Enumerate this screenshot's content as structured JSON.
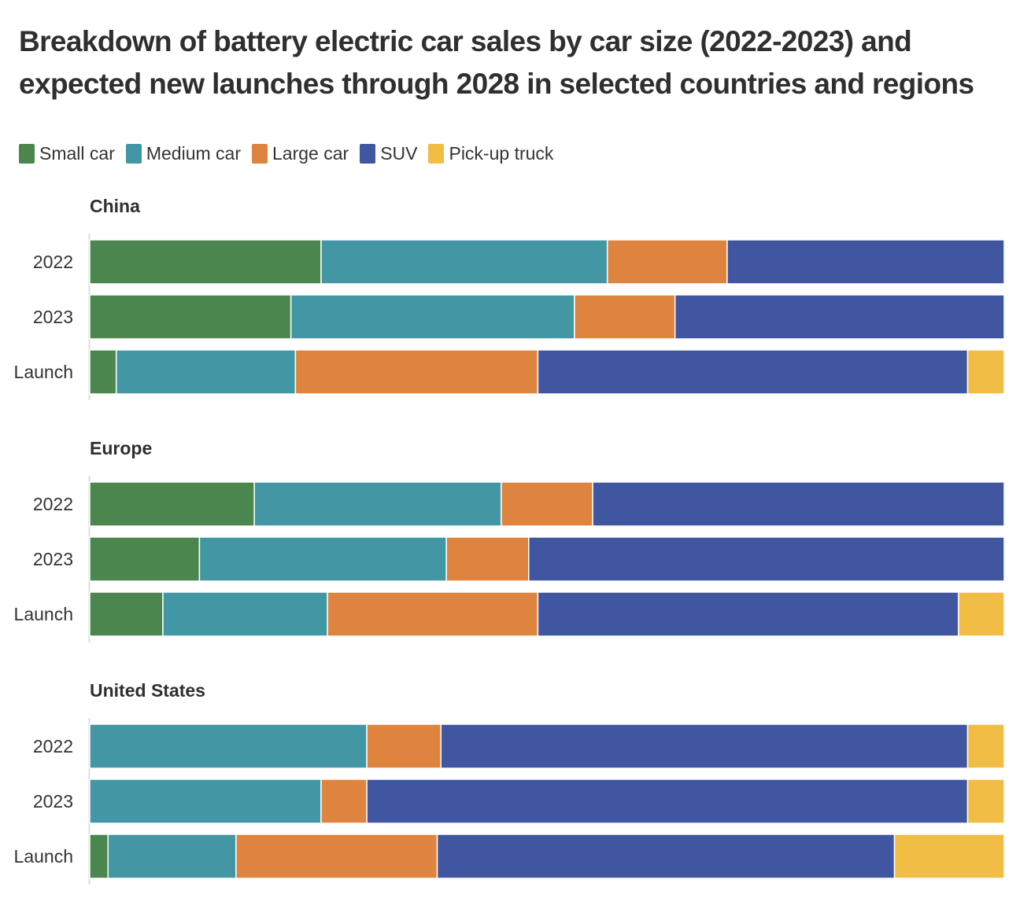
{
  "title": "Breakdown of battery electric car sales by car size (2022-2023) and expected new launches through 2028 in selected countries and regions",
  "colors": {
    "Small car": "#4a864e",
    "Medium car": "#4396a4",
    "Large car": "#de843f",
    "SUV": "#4056a1",
    "Pick-up truck": "#f2bd45"
  },
  "legend": [
    "Small car",
    "Medium car",
    "Large car",
    "SUV",
    "Pick-up truck"
  ],
  "chart_data": {
    "type": "bar",
    "orientation": "horizontal",
    "stacked": true,
    "normalized_percent": true,
    "title": "Breakdown of battery electric car sales by car size (2022-2023) and expected new launches through 2028 in selected countries and regions",
    "xlabel": "",
    "ylabel": "",
    "xlim": [
      0,
      100
    ],
    "series_names": [
      "Small car",
      "Medium car",
      "Large car",
      "SUV",
      "Pick-up truck"
    ],
    "panels": [
      {
        "region": "China",
        "categories": [
          "2022",
          "2023",
          "Launch"
        ],
        "series": [
          {
            "name": "Small car",
            "values": [
              25.3,
              22.0,
              2.9
            ]
          },
          {
            "name": "Medium car",
            "values": [
              31.3,
              31.0,
              19.6
            ]
          },
          {
            "name": "Large car",
            "values": [
              13.1,
              11.0,
              26.5
            ]
          },
          {
            "name": "SUV",
            "values": [
              30.3,
              36.0,
              47.0
            ]
          },
          {
            "name": "Pick-up truck",
            "values": [
              0,
              0,
              4.0
            ]
          }
        ]
      },
      {
        "region": "Europe",
        "categories": [
          "2022",
          "2023",
          "Launch"
        ],
        "series": [
          {
            "name": "Small car",
            "values": [
              18.0,
              12.0,
              8.0
            ]
          },
          {
            "name": "Medium car",
            "values": [
              27.0,
              27.0,
              18.0
            ]
          },
          {
            "name": "Large car",
            "values": [
              10.0,
              9.0,
              23.0
            ]
          },
          {
            "name": "SUV",
            "values": [
              45.0,
              52.0,
              46.0
            ]
          },
          {
            "name": "Pick-up truck",
            "values": [
              0,
              0,
              5.0
            ]
          }
        ]
      },
      {
        "region": "United States",
        "categories": [
          "2022",
          "2023",
          "Launch"
        ],
        "series": [
          {
            "name": "Small car",
            "values": [
              0,
              0,
              2.0
            ]
          },
          {
            "name": "Medium car",
            "values": [
              30.3,
              25.3,
              14.0
            ]
          },
          {
            "name": "Large car",
            "values": [
              8.1,
              5.0,
              22.0
            ]
          },
          {
            "name": "SUV",
            "values": [
              57.6,
              65.7,
              50.0
            ]
          },
          {
            "name": "Pick-up truck",
            "values": [
              4.0,
              4.0,
              12.0
            ]
          }
        ]
      }
    ]
  }
}
